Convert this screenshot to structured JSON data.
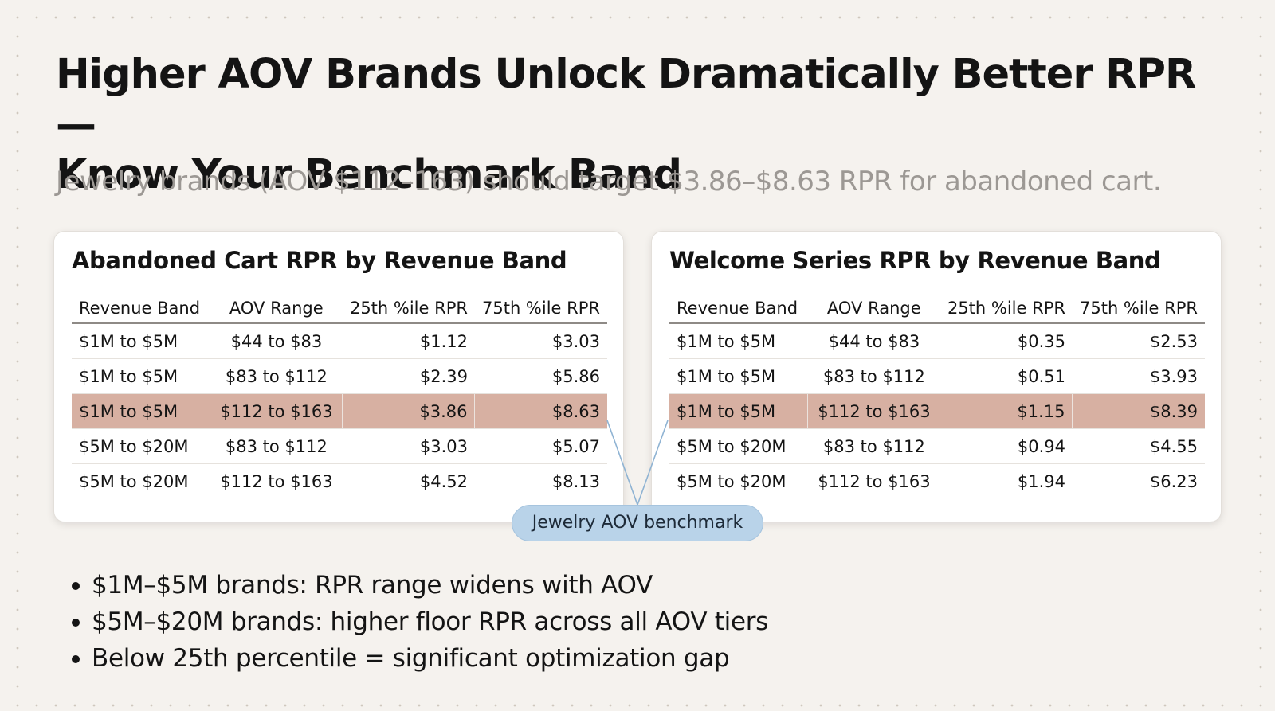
{
  "title_lines": [
    "Higher AOV Brands Unlock Dramatically Better RPR —",
    "Know Your Benchmark Band"
  ],
  "subtitle": "Jewelry brands (AOV $112–163) should target $3.86–$8.63 RPR for abandoned cart.",
  "tables": [
    {
      "title": "Abandoned Cart RPR by Revenue Band",
      "columns": [
        "Revenue Band",
        "AOV Range",
        "25th %ile RPR",
        "75th %ile RPR"
      ],
      "rows": [
        [
          "$1M to $5M",
          "$44 to $83",
          "$1.12",
          "$3.03"
        ],
        [
          "$1M to $5M",
          "$83 to $112",
          "$2.39",
          "$5.86"
        ],
        [
          "$1M to $5M",
          "$112 to $163",
          "$3.86",
          "$8.63"
        ],
        [
          "$5M to $20M",
          "$83 to $112",
          "$3.03",
          "$5.07"
        ],
        [
          "$5M to $20M",
          "$112 to $163",
          "$4.52",
          "$8.13"
        ]
      ],
      "highlight_row": 2
    },
    {
      "title": "Welcome Series RPR by Revenue Band",
      "columns": [
        "Revenue Band",
        "AOV Range",
        "25th %ile RPR",
        "75th %ile RPR"
      ],
      "rows": [
        [
          "$1M to $5M",
          "$44 to $83",
          "$0.35",
          "$2.53"
        ],
        [
          "$1M to $5M",
          "$83 to $112",
          "$0.51",
          "$3.93"
        ],
        [
          "$1M to $5M",
          "$112 to $163",
          "$1.15",
          "$8.39"
        ],
        [
          "$5M to $20M",
          "$83 to $112",
          "$0.94",
          "$4.55"
        ],
        [
          "$5M to $20M",
          "$112 to $163",
          "$1.94",
          "$6.23"
        ]
      ],
      "highlight_row": 2
    }
  ],
  "callout_label": "Jewelry AOV benchmark",
  "bullets": [
    "$1M–$5M brands: RPR range widens with AOV",
    "$5M–$20M brands: higher floor RPR across all AOV tiers",
    "Below 25th percentile = significant optimization gap"
  ],
  "colors": {
    "background": "#f5f2ee",
    "highlight_row": "#d7b0a2",
    "callout_fill": "#b9d3e9",
    "connector_line": "#8fb3d3",
    "subtitle_text": "#9c9894"
  }
}
